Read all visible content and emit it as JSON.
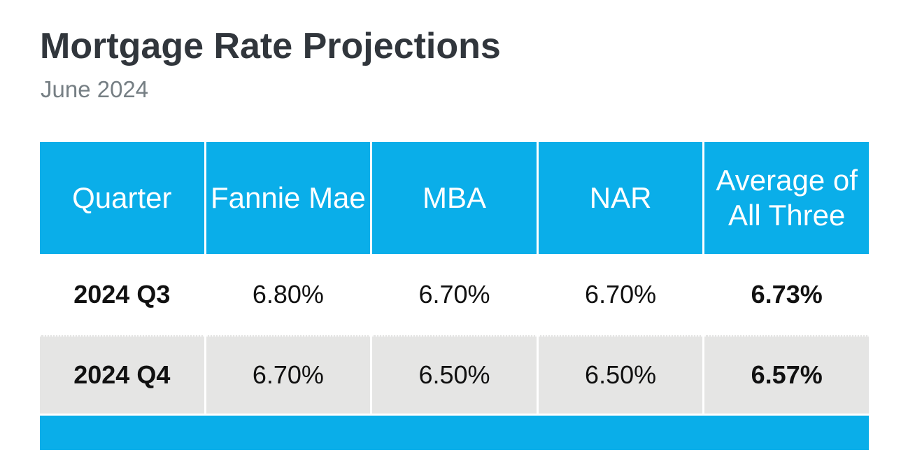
{
  "page": {
    "background": "#ffffff"
  },
  "colors": {
    "accent_blue": "#0AAEE9",
    "alt_row_gray": "#E5E5E4",
    "title_text": "#31363C",
    "subtitle_text": "#767F84",
    "header_text": "#FFFFFF",
    "body_text": "#111111"
  },
  "chart_data": {
    "type": "table",
    "title": "Mortgage Rate Projections",
    "subtitle": "June 2024",
    "columns": [
      "Quarter",
      "Fannie Mae",
      "MBA",
      "NAR",
      "Average of All Three"
    ],
    "rows": [
      [
        "2024 Q3",
        "6.80%",
        "6.70%",
        "6.70%",
        "6.73%"
      ],
      [
        "2024 Q4",
        "6.70%",
        "6.50%",
        "6.50%",
        "6.57%"
      ]
    ],
    "layout": {
      "header_fill": "#0AAEE9",
      "alt_row_fill": "#E5E5E4",
      "bold_columns": [
        "Quarter",
        "Average of All Three"
      ],
      "footer_bar": true,
      "grid": "off",
      "legend": "none"
    }
  }
}
